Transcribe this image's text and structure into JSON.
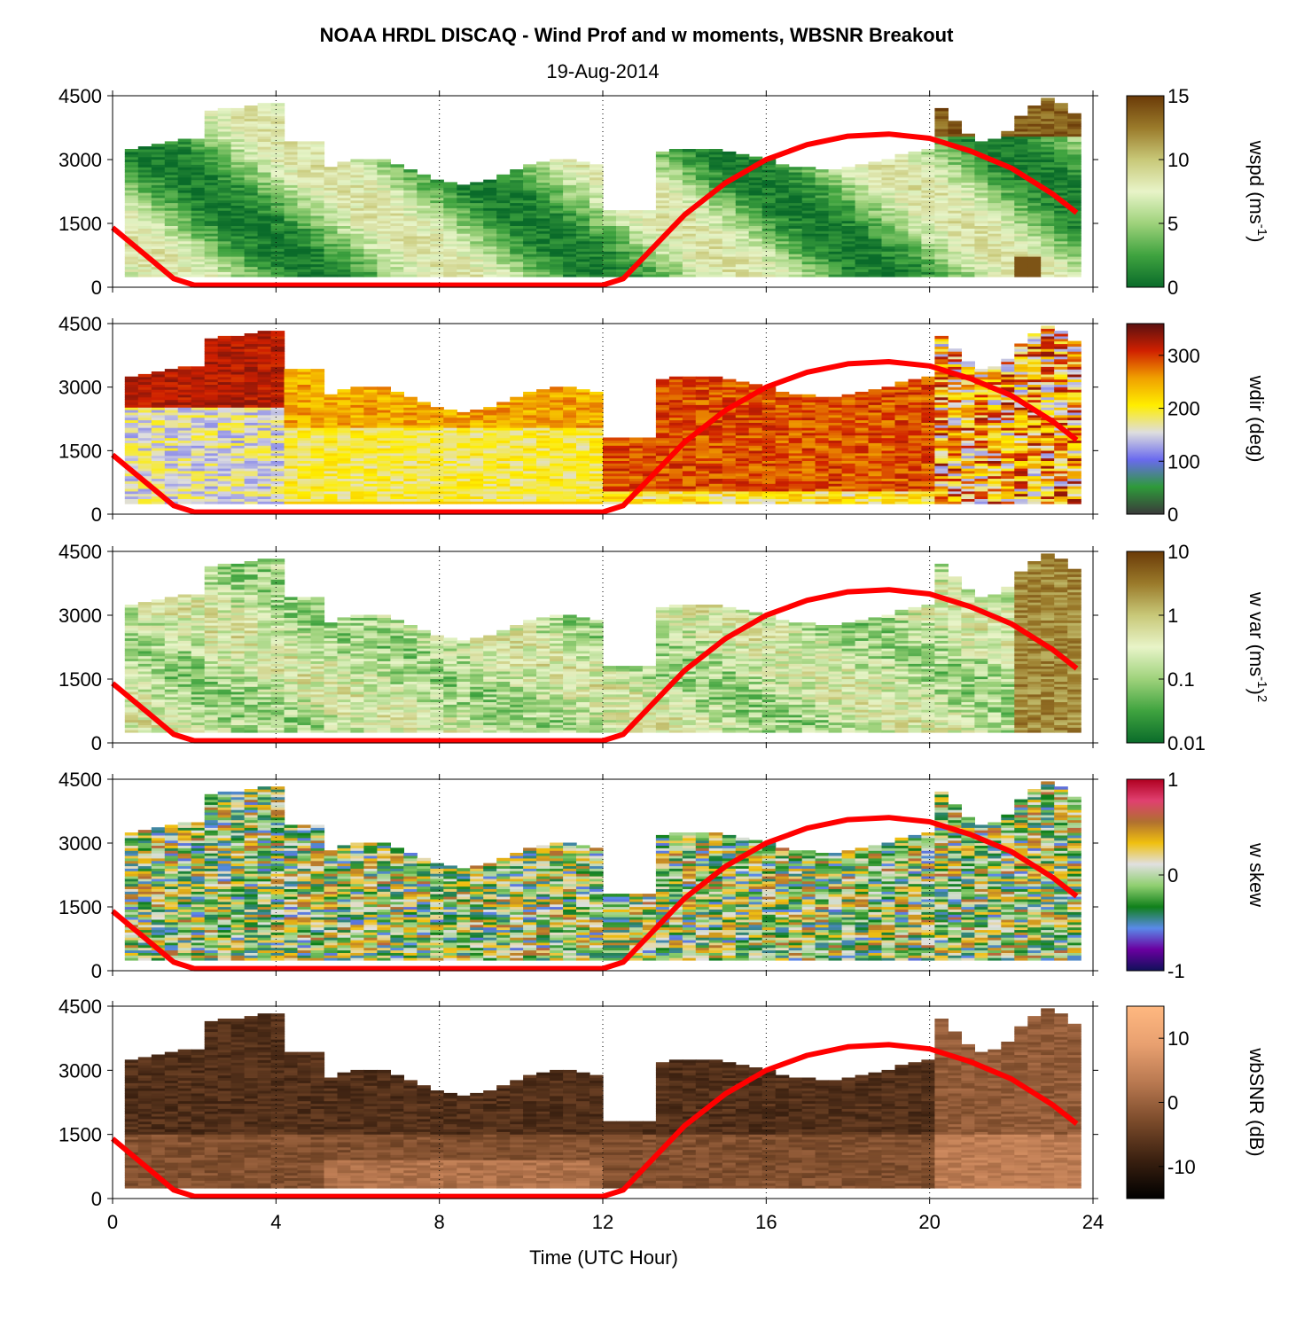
{
  "title": "NOAA HRDL DISCAQ - Wind Prof and w moments, WBSNR Breakout",
  "subtitle": "19-Aug-2014",
  "xlabel": "Time (UTC Hour)",
  "x_ticks": [
    "0",
    "4",
    "8",
    "12",
    "16",
    "20",
    "24"
  ],
  "y_ticks": [
    "0",
    "1500",
    "3000",
    "4500"
  ],
  "colors": {
    "boundary_layer_line": "#ff0000"
  },
  "chart_data": [
    {
      "type": "heatmap",
      "ylabel_main": "wspd (ms",
      "ylabel_sup": "-1",
      "ylabel_tail": ")",
      "cbar_ticks": [
        "0",
        "5",
        "10",
        "15"
      ],
      "cbar_range": [
        0,
        15
      ],
      "colormap": [
        "#0a6b2a",
        "#3fa33f",
        "#9ed27b",
        "#e8f4c8",
        "#c8c878",
        "#9a7a2a",
        "#6a3a08"
      ],
      "xlim": [
        0,
        24
      ],
      "ylim": [
        0,
        4500
      ]
    },
    {
      "type": "heatmap",
      "ylabel_main": "wdir (deg)",
      "cbar_ticks": [
        "0",
        "100",
        "200",
        "300"
      ],
      "cbar_range": [
        0,
        360
      ],
      "colormap": [
        "#3a3a3a",
        "#2e9a3a",
        "#6a6aee",
        "#dedede",
        "#ffee00",
        "#f0a000",
        "#d02000",
        "#5a1010"
      ],
      "xlim": [
        0,
        24
      ],
      "ylim": [
        0,
        4500
      ]
    },
    {
      "type": "heatmap",
      "ylabel_main": "w var (ms",
      "ylabel_sup": "-1",
      "ylabel_tail": ")",
      "ylabel_sup2": "2",
      "cbar_ticks": [
        "0.01",
        "0.1",
        "1",
        "10"
      ],
      "cbar_range": [
        0.01,
        10
      ],
      "cbar_scale": "log",
      "colormap": [
        "#0a6b2a",
        "#3fa33f",
        "#9ed27b",
        "#e8f4c8",
        "#c8c878",
        "#9a7a2a",
        "#6a3a08"
      ],
      "xlim": [
        0,
        24
      ],
      "ylim": [
        0,
        4500
      ]
    },
    {
      "type": "heatmap",
      "ylabel_main": "w skew",
      "cbar_ticks": [
        "-1",
        "0",
        "1"
      ],
      "cbar_range": [
        -1,
        1
      ],
      "colormap": [
        "#10105a",
        "#6a00a0",
        "#5a8ae8",
        "#10801a",
        "#8fcf70",
        "#e0e0e0",
        "#f0c010",
        "#b07030",
        "#e04070",
        "#b00020"
      ],
      "xlim": [
        0,
        24
      ],
      "ylim": [
        0,
        4500
      ]
    },
    {
      "type": "heatmap",
      "ylabel_main": "wbSNR (dB)",
      "cbar_ticks": [
        "-10",
        "0",
        "10"
      ],
      "cbar_range": [
        -15,
        15
      ],
      "colormap": [
        "#000000",
        "#3a2010",
        "#7a4a2a",
        "#b87850",
        "#e8a070",
        "#ffb880"
      ],
      "xlim": [
        0,
        24
      ],
      "ylim": [
        0,
        4500
      ]
    }
  ],
  "line_series": {
    "x": [
      0,
      0.5,
      1,
      1.5,
      2,
      3,
      4,
      6,
      8,
      10,
      12,
      12.5,
      13,
      14,
      15,
      16,
      17,
      18,
      19,
      20,
      21,
      22,
      23,
      23.6
    ],
    "y": [
      1400,
      1000,
      600,
      200,
      50,
      50,
      50,
      50,
      50,
      50,
      50,
      200,
      700,
      1700,
      2450,
      3000,
      3350,
      3550,
      3600,
      3500,
      3200,
      2800,
      2200,
      1750
    ]
  }
}
